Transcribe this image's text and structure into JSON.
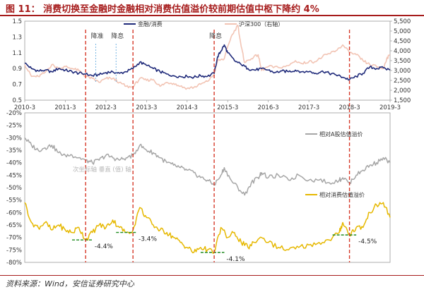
{
  "figure": {
    "title": "图 11： 消费切换至金融时金融相对消费估值溢价较前期估值中枢下降约 4%",
    "source": "资料来源：Wind，安信证券研究中心",
    "watermark": "次坐标轴 垂直 (值) 轴"
  },
  "colors": {
    "title": "#a61b1b",
    "finance_consumer": "#1f2a7a",
    "hs300": "#f2c4b4",
    "a_share_premium": "#a6a6a6",
    "consumer_premium": "#e6b800",
    "event_line": "#d63a2a",
    "policy_line": "#6aaee0",
    "low_line": "#1e8b1e"
  },
  "chart_data": [
    {
      "type": "line",
      "panel": "top",
      "x_range": [
        "2010-03",
        "2019-03"
      ],
      "x_ticks": [
        "2010-3",
        "2011-3",
        "2012-3",
        "2013-3",
        "2014-3",
        "2015-3",
        "2016-3",
        "2017-3",
        "2018-3",
        "2019-3"
      ],
      "y_left": {
        "lim": [
          0.5,
          1.5
        ],
        "ticks": [
          "0.5",
          "0.7",
          "0.9",
          "1.1",
          "1.3",
          "1.5"
        ]
      },
      "y_right": {
        "lim": [
          1500,
          5500
        ],
        "ticks": [
          "1,500",
          "2,000",
          "2,500",
          "3,000",
          "3,500",
          "4,000",
          "4,500",
          "5,000",
          "5,500"
        ]
      },
      "legend_position": "top",
      "series": [
        {
          "name": "金融/消费",
          "axis": "left",
          "color_key": "finance_consumer",
          "points": [
            [
              "2010-03",
              0.97
            ],
            [
              "2010-05",
              0.9
            ],
            [
              "2010-07",
              0.87
            ],
            [
              "2010-09",
              0.88
            ],
            [
              "2010-11",
              0.86
            ],
            [
              "2011-01",
              0.9
            ],
            [
              "2011-03",
              0.88
            ],
            [
              "2011-05",
              0.86
            ],
            [
              "2011-07",
              0.84
            ],
            [
              "2011-09",
              0.83
            ],
            [
              "2011-11",
              0.81
            ],
            [
              "2012-01",
              0.82
            ],
            [
              "2012-03",
              0.85
            ],
            [
              "2012-05",
              0.86
            ],
            [
              "2012-07",
              0.84
            ],
            [
              "2012-09",
              0.86
            ],
            [
              "2012-11",
              0.9
            ],
            [
              "2013-01",
              0.98
            ],
            [
              "2013-03",
              0.94
            ],
            [
              "2013-05",
              0.9
            ],
            [
              "2013-07",
              0.86
            ],
            [
              "2013-09",
              0.83
            ],
            [
              "2013-11",
              0.81
            ],
            [
              "2014-01",
              0.8
            ],
            [
              "2014-03",
              0.8
            ],
            [
              "2014-05",
              0.79
            ],
            [
              "2014-07",
              0.81
            ],
            [
              "2014-09",
              0.8
            ],
            [
              "2014-11",
              0.84
            ],
            [
              "2014-12",
              1.05
            ],
            [
              "2015-01",
              1.12
            ],
            [
              "2015-02",
              1.2
            ],
            [
              "2015-03",
              1.1
            ],
            [
              "2015-05",
              1.0
            ],
            [
              "2015-07",
              0.95
            ],
            [
              "2015-09",
              0.9
            ],
            [
              "2015-11",
              0.88
            ],
            [
              "2016-01",
              0.9
            ],
            [
              "2016-03",
              0.88
            ],
            [
              "2016-05",
              0.85
            ],
            [
              "2016-07",
              0.87
            ],
            [
              "2016-09",
              0.86
            ],
            [
              "2016-11",
              0.88
            ],
            [
              "2017-01",
              0.86
            ],
            [
              "2017-03",
              0.86
            ],
            [
              "2017-05",
              0.84
            ],
            [
              "2017-07",
              0.87
            ],
            [
              "2017-09",
              0.84
            ],
            [
              "2017-11",
              0.82
            ],
            [
              "2018-01",
              0.79
            ],
            [
              "2018-03",
              0.76
            ],
            [
              "2018-05",
              0.8
            ],
            [
              "2018-07",
              0.84
            ],
            [
              "2018-09",
              0.92
            ],
            [
              "2018-11",
              0.9
            ],
            [
              "2019-01",
              0.91
            ],
            [
              "2019-03",
              0.88
            ]
          ]
        },
        {
          "name": "沪深300（右轴）",
          "axis": "right",
          "color_key": "hs300",
          "points": [
            [
              "2010-03",
              3300
            ],
            [
              "2010-05",
              2700
            ],
            [
              "2010-07",
              2700
            ],
            [
              "2010-09",
              2900
            ],
            [
              "2010-11",
              3300
            ],
            [
              "2011-01",
              3100
            ],
            [
              "2011-03",
              3200
            ],
            [
              "2011-05",
              3100
            ],
            [
              "2011-07",
              3000
            ],
            [
              "2011-09",
              2700
            ],
            [
              "2011-11",
              2600
            ],
            [
              "2012-01",
              2400
            ],
            [
              "2012-03",
              2600
            ],
            [
              "2012-05",
              2600
            ],
            [
              "2012-07",
              2400
            ],
            [
              "2012-09",
              2200
            ],
            [
              "2012-11",
              2150
            ],
            [
              "2013-01",
              2600
            ],
            [
              "2013-03",
              2500
            ],
            [
              "2013-05",
              2550
            ],
            [
              "2013-07",
              2200
            ],
            [
              "2013-09",
              2400
            ],
            [
              "2013-11",
              2350
            ],
            [
              "2014-01",
              2200
            ],
            [
              "2014-03",
              2100
            ],
            [
              "2014-05",
              2150
            ],
            [
              "2014-07",
              2300
            ],
            [
              "2014-09",
              2450
            ],
            [
              "2014-11",
              2800
            ],
            [
              "2014-12",
              3500
            ],
            [
              "2015-02",
              3600
            ],
            [
              "2015-04",
              4700
            ],
            [
              "2015-06",
              5300
            ],
            [
              "2015-07",
              4200
            ],
            [
              "2015-08",
              3400
            ],
            [
              "2015-10",
              3600
            ],
            [
              "2015-12",
              3800
            ],
            [
              "2016-01",
              3000
            ],
            [
              "2016-03",
              3200
            ],
            [
              "2016-06",
              3150
            ],
            [
              "2016-09",
              3250
            ],
            [
              "2016-11",
              3500
            ],
            [
              "2017-01",
              3350
            ],
            [
              "2017-03",
              3450
            ],
            [
              "2017-05",
              3450
            ],
            [
              "2017-07",
              3700
            ],
            [
              "2017-09",
              3850
            ],
            [
              "2017-11",
              4000
            ],
            [
              "2018-01",
              4300
            ],
            [
              "2018-03",
              3900
            ],
            [
              "2018-05",
              3800
            ],
            [
              "2018-07",
              3500
            ],
            [
              "2018-09",
              3300
            ],
            [
              "2018-11",
              3200
            ],
            [
              "2019-01",
              3100
            ],
            [
              "2019-02",
              3600
            ],
            [
              "2019-03",
              3800
            ]
          ]
        }
      ],
      "event_lines": [
        {
          "date": "2011-09",
          "style": "red-dashed"
        },
        {
          "date": "2012-11",
          "style": "red-dashed"
        },
        {
          "date": "2014-11",
          "style": "red-dashed"
        },
        {
          "date": "2018-03",
          "style": "red-dashed"
        }
      ],
      "policy_lines": [
        {
          "date": "2011-12",
          "label": "降准"
        },
        {
          "date": "2012-06",
          "label": "降息"
        },
        {
          "date": "2014-11",
          "label": "降息"
        }
      ]
    },
    {
      "type": "line",
      "panel": "bottom",
      "x_range": [
        "2010-03",
        "2019-03"
      ],
      "y_left": {
        "lim": [
          -80,
          -20
        ],
        "ticks": [
          "-20%",
          "-25%",
          "-30%",
          "-35%",
          "-40%",
          "-45%",
          "-50%",
          "-55%",
          "-60%",
          "-65%",
          "-70%",
          "-75%",
          "-80%"
        ]
      },
      "series": [
        {
          "name": "相对A股估值溢价",
          "color_key": "a_share_premium",
          "points": [
            [
              "2010-03",
              -30
            ],
            [
              "2010-05",
              -33
            ],
            [
              "2010-07",
              -35
            ],
            [
              "2010-09",
              -34
            ],
            [
              "2010-11",
              -33
            ],
            [
              "2011-01",
              -36
            ],
            [
              "2011-03",
              -37
            ],
            [
              "2011-05",
              -37
            ],
            [
              "2011-07",
              -38
            ],
            [
              "2011-09",
              -39
            ],
            [
              "2011-11",
              -40
            ],
            [
              "2012-01",
              -39
            ],
            [
              "2012-03",
              -37
            ],
            [
              "2012-05",
              -38
            ],
            [
              "2012-07",
              -39
            ],
            [
              "2012-09",
              -38
            ],
            [
              "2012-11",
              -37
            ],
            [
              "2013-01",
              -33
            ],
            [
              "2013-03",
              -35
            ],
            [
              "2013-05",
              -36
            ],
            [
              "2013-07",
              -38
            ],
            [
              "2013-09",
              -40
            ],
            [
              "2013-11",
              -41
            ],
            [
              "2014-01",
              -42
            ],
            [
              "2014-03",
              -43
            ],
            [
              "2014-05",
              -44
            ],
            [
              "2014-07",
              -46
            ],
            [
              "2014-09",
              -47
            ],
            [
              "2014-11",
              -49
            ],
            [
              "2015-01",
              -45
            ],
            [
              "2015-02",
              -42
            ],
            [
              "2015-04",
              -47
            ],
            [
              "2015-06",
              -50
            ],
            [
              "2015-08",
              -53
            ],
            [
              "2015-10",
              -48
            ],
            [
              "2015-12",
              -46
            ],
            [
              "2016-01",
              -44
            ],
            [
              "2016-03",
              -46
            ],
            [
              "2016-06",
              -45
            ],
            [
              "2016-09",
              -47
            ],
            [
              "2016-12",
              -45
            ],
            [
              "2017-03",
              -47
            ],
            [
              "2017-06",
              -47
            ],
            [
              "2017-09",
              -48
            ],
            [
              "2017-12",
              -47
            ],
            [
              "2018-01",
              -46
            ],
            [
              "2018-03",
              -48
            ],
            [
              "2018-05",
              -45
            ],
            [
              "2018-07",
              -43
            ],
            [
              "2018-09",
              -41
            ],
            [
              "2018-11",
              -40
            ],
            [
              "2019-01",
              -38
            ],
            [
              "2019-03",
              -40
            ]
          ]
        },
        {
          "name": "相对消费估值溢价",
          "color_key": "consumer_premium",
          "points": [
            [
              "2010-03",
              -56
            ],
            [
              "2010-05",
              -64
            ],
            [
              "2010-07",
              -66
            ],
            [
              "2010-09",
              -64
            ],
            [
              "2010-11",
              -67
            ],
            [
              "2011-01",
              -65
            ],
            [
              "2011-03",
              -67
            ],
            [
              "2011-05",
              -68
            ],
            [
              "2011-07",
              -66
            ],
            [
              "2011-09",
              -71
            ],
            [
              "2011-11",
              -68
            ],
            [
              "2012-01",
              -65
            ],
            [
              "2012-03",
              -66
            ],
            [
              "2012-05",
              -63
            ],
            [
              "2012-07",
              -66
            ],
            [
              "2012-09",
              -68
            ],
            [
              "2012-11",
              -67
            ],
            [
              "2013-01",
              -58
            ],
            [
              "2013-03",
              -62
            ],
            [
              "2013-05",
              -65
            ],
            [
              "2013-07",
              -67
            ],
            [
              "2013-09",
              -68
            ],
            [
              "2013-11",
              -70
            ],
            [
              "2014-01",
              -72
            ],
            [
              "2014-03",
              -74
            ],
            [
              "2014-05",
              -76
            ],
            [
              "2014-07",
              -74
            ],
            [
              "2014-09",
              -75
            ],
            [
              "2014-11",
              -76
            ],
            [
              "2015-01",
              -66
            ],
            [
              "2015-03",
              -70
            ],
            [
              "2015-05",
              -68
            ],
            [
              "2015-07",
              -72
            ],
            [
              "2015-09",
              -74
            ],
            [
              "2015-11",
              -72
            ],
            [
              "2016-01",
              -70
            ],
            [
              "2016-03",
              -72
            ],
            [
              "2016-06",
              -74
            ],
            [
              "2016-09",
              -75
            ],
            [
              "2016-12",
              -74
            ],
            [
              "2017-03",
              -73
            ],
            [
              "2017-06",
              -72
            ],
            [
              "2017-09",
              -71
            ],
            [
              "2017-12",
              -68
            ],
            [
              "2018-01",
              -64
            ],
            [
              "2018-03",
              -69
            ],
            [
              "2018-05",
              -66
            ],
            [
              "2018-07",
              -66
            ],
            [
              "2018-09",
              -60
            ],
            [
              "2018-11",
              -57
            ],
            [
              "2019-01",
              -56
            ],
            [
              "2019-03",
              -62
            ]
          ]
        }
      ],
      "low_markers": [
        {
          "from": "2011-05",
          "to": "2011-11",
          "value": -71,
          "label": "-4.4%"
        },
        {
          "from": "2012-06",
          "to": "2012-12",
          "value": -68,
          "label": "-3.4%"
        },
        {
          "from": "2014-07",
          "to": "2015-02",
          "value": -76,
          "label": "-4.1%"
        },
        {
          "from": "2017-10",
          "to": "2018-05",
          "value": -69,
          "label": "-4.5%"
        }
      ]
    }
  ]
}
